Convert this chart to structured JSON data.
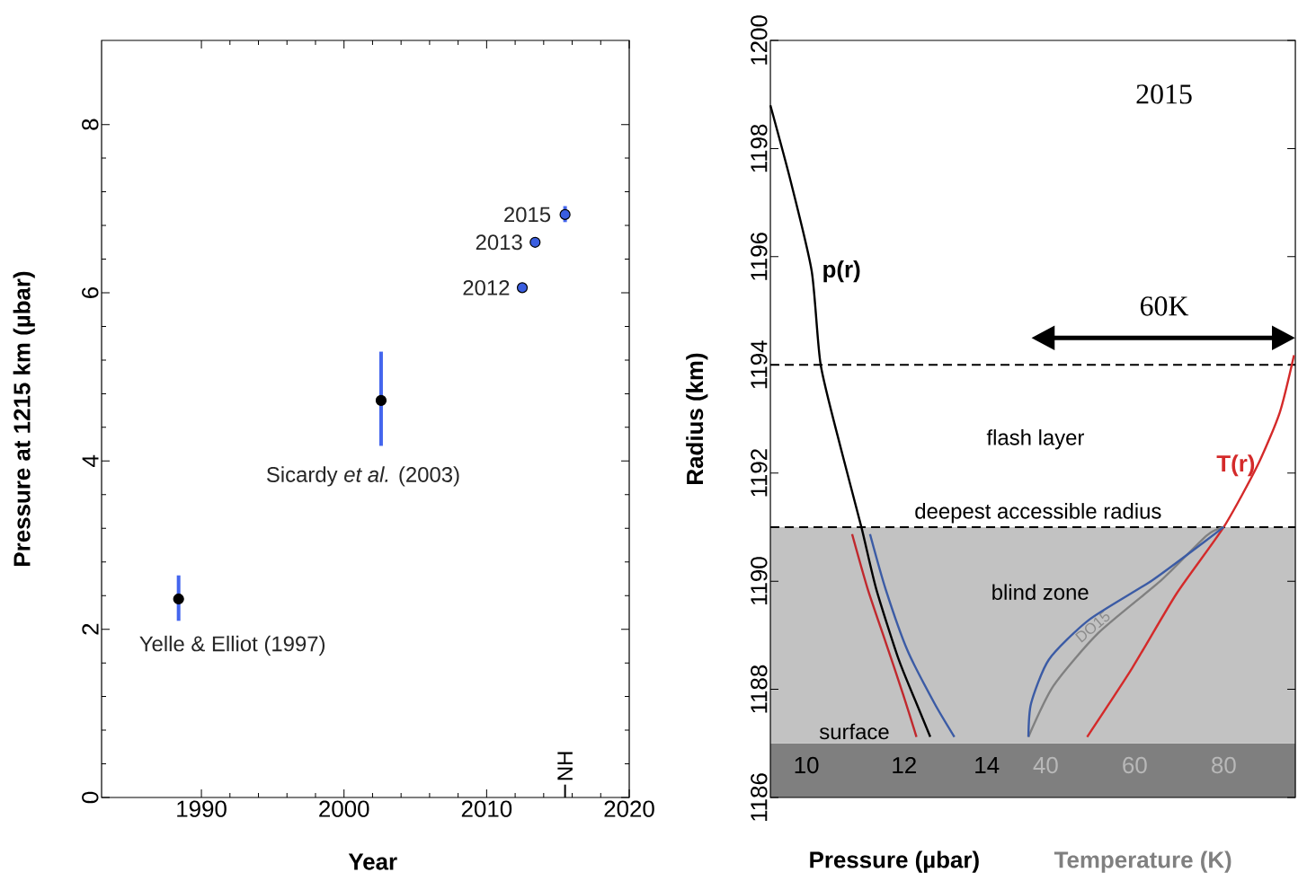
{
  "chart_data": [
    {
      "type": "scatter",
      "xlabel": "Year",
      "ylabel": "Pressure at 1215 km (µbar)",
      "xlim": [
        1983,
        2020
      ],
      "ylim": [
        0,
        9
      ],
      "xticks": [
        1990,
        2000,
        2010,
        2020
      ],
      "yticks": [
        0,
        2,
        4,
        6,
        8
      ],
      "marker": "circle",
      "color": "#4466ee",
      "x": [
        1988.4,
        2002.6,
        2012.5,
        2013.4,
        2015.5
      ],
      "values": [
        2.36,
        4.72,
        6.06,
        6.6,
        6.93
      ],
      "errors": [
        [
          2.1,
          2.64
        ],
        [
          4.18,
          5.3
        ],
        null,
        null,
        [
          6.84,
          7.03
        ]
      ],
      "colors": [
        "#000000",
        "#000000",
        "#3a5ee0",
        "#3a5ee0",
        "#3a5ee0"
      ],
      "annotations": [
        {
          "text": "Yelle & Elliot (1997)",
          "x": 1988.4,
          "y": 2.36
        },
        {
          "text": "Sicardy *et al.* (2003)",
          "x": 2002.6,
          "y": 4.18
        },
        {
          "text": "2012",
          "x": 2012.5,
          "y": 6.06
        },
        {
          "text": "2013",
          "x": 2013.4,
          "y": 6.6
        },
        {
          "text": "2015",
          "x": 2015.5,
          "y": 6.93
        }
      ],
      "ref_lines": [
        {
          "axis": "x",
          "value": 2015.5,
          "label": "NH"
        }
      ]
    },
    {
      "type": "line",
      "xlabel": "Pressure (µbar)",
      "x2label": "Temperature (K)",
      "ylabel": "Radius (km)",
      "log": "x",
      "xlim": [
        9.35,
        24.9
      ],
      "xticks": [
        10,
        12,
        14
      ],
      "x2lim": [
        -21.9,
        96.1
      ],
      "x2ticks": [
        40,
        60,
        80
      ],
      "ylim": [
        1186,
        1200
      ],
      "yticks": [
        1186,
        1188,
        1190,
        1192,
        1194,
        1196,
        1198,
        1200
      ],
      "line_style": "solid",
      "series": [
        {
          "name": "p(r)",
          "color": "#000000",
          "x": [
            9.35,
            9.72,
            10.1,
            10.27,
            10.66,
            11.08,
            11.39,
            11.88,
            12.28,
            12.6
          ],
          "values": [
            1198.8,
            1197.36,
            1195.73,
            1194.0,
            1192.47,
            1191.0,
            1189.86,
            1188.55,
            1187.74,
            1187.12
          ]
        },
        {
          "color": "#c0282d",
          "x": [
            10.89,
            11.21,
            11.59,
            11.98,
            12.28
          ],
          "values": [
            1190.87,
            1189.86,
            1188.88,
            1187.9,
            1187.12
          ]
        },
        {
          "color": "#3b5ba5",
          "x": [
            11.26,
            11.59,
            12.08,
            12.7,
            13.18
          ],
          "values": [
            1190.87,
            1189.86,
            1188.71,
            1187.74,
            1187.12
          ]
        },
        {
          "name": "T(r)",
          "axis": "x2",
          "color": "#d42a2a",
          "x": [
            49.3,
            59.4,
            69.4,
            80,
            87.6,
            92.6,
            95.8
          ],
          "values": [
            1187.12,
            1188.39,
            1189.77,
            1191.0,
            1192.14,
            1193.12,
            1194.18
          ]
        },
        {
          "name": "DO15",
          "axis": "x2",
          "color": "#808080",
          "x": [
            36.1,
            41.7,
            51.8,
            66,
            76.1,
            80
          ],
          "values": [
            1187.12,
            1188.06,
            1189.04,
            1190.02,
            1190.84,
            1191.0
          ]
        },
        {
          "axis": "x2",
          "color": "#3b5ba5",
          "x": [
            36.1,
            36.7,
            40.7,
            49.8,
            64,
            76,
            80
          ],
          "values": [
            1187.12,
            1187.74,
            1188.55,
            1189.29,
            1190.02,
            1190.75,
            1191.0
          ]
        }
      ],
      "bands": [
        {
          "axis": "y",
          "from": 1186,
          "to": 1187,
          "label": "surface",
          "color": "#7f7f7f"
        },
        {
          "axis": "y",
          "from": 1187,
          "to": 1191,
          "label": "blind zone",
          "color": "#c2c2c2"
        }
      ],
      "ref_lines": [
        {
          "axis": "y",
          "value": 1194,
          "line_style": "dashed"
        },
        {
          "axis": "y",
          "value": 1191,
          "label": "deepest accessible radius",
          "line_style": "dashed"
        }
      ],
      "annotations": [
        "2015",
        "60K",
        "flash layer"
      ]
    }
  ]
}
